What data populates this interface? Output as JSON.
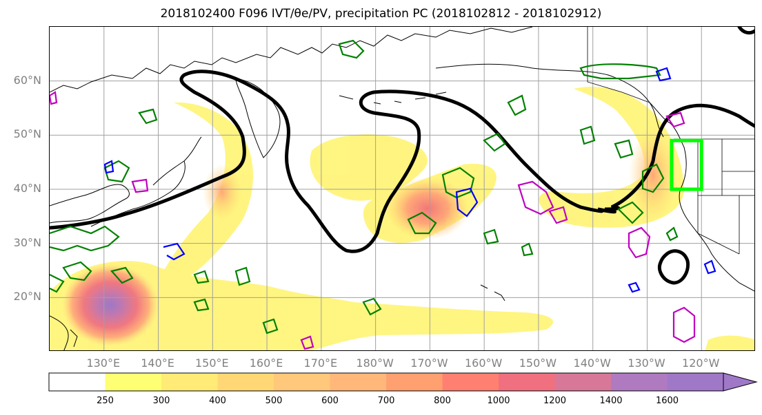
{
  "title": "2018102400 F096 IVT/θe/PV, precipitation PC (2018102812 - 2018102912)",
  "map": {
    "lat_labels": [
      {
        "lat": 60,
        "label": "60°N"
      },
      {
        "lat": 50,
        "label": "50°N"
      },
      {
        "lat": 40,
        "label": "40°N"
      },
      {
        "lat": 30,
        "label": "30°N"
      },
      {
        "lat": 20,
        "label": "20°N"
      }
    ],
    "lon_labels": [
      {
        "lon": 130,
        "label": "130°E"
      },
      {
        "lon": 140,
        "label": "140°E"
      },
      {
        "lon": 150,
        "label": "150°E"
      },
      {
        "lon": 160,
        "label": "160°E"
      },
      {
        "lon": 170,
        "label": "170°E"
      },
      {
        "lon": 180,
        "label": "180°W"
      },
      {
        "lon": 190,
        "label": "170°W"
      },
      {
        "lon": 200,
        "label": "160°W"
      },
      {
        "lon": 210,
        "label": "150°W"
      },
      {
        "lon": 220,
        "label": "140°W"
      },
      {
        "lon": 230,
        "label": "130°W"
      },
      {
        "lon": 240,
        "label": "120°W"
      }
    ],
    "lon_range": [
      120,
      250
    ],
    "lat_range": [
      10,
      70
    ],
    "grid": true,
    "highlight_box": {
      "lon": [
        234.5,
        240
      ],
      "lat": [
        40,
        49
      ],
      "color": "#00ff00"
    },
    "contour_colors": {
      "theta_e": "#000000",
      "pv_green": "#008000",
      "pv_blue": "#0000ff",
      "pv_magenta": "#c000c0"
    },
    "ivt_max_center": {
      "lon": 131,
      "lat": 18
    }
  },
  "colorbar": {
    "levels": [
      "250",
      "300",
      "400",
      "500",
      "600",
      "700",
      "800",
      "1000",
      "1200",
      "1400",
      "1600"
    ],
    "colors": [
      "#ffffff",
      "#ffff73",
      "#ffeb75",
      "#ffd875",
      "#ffc87a",
      "#ffb87a",
      "#ffa070",
      "#ff8070",
      "#f07080",
      "#d87898",
      "#b07ac0",
      "#a078c8"
    ],
    "extend": "max"
  }
}
